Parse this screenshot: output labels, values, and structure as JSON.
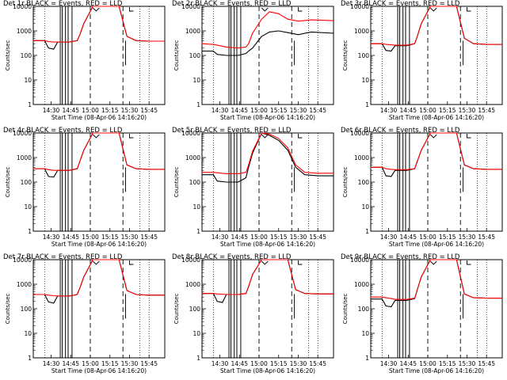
{
  "ylabel": "Counts/sec",
  "xlabel": "Start Time (08-Apr-06 14:16:20)",
  "x_tick_labels": [
    "14:30",
    "14:45",
    "15:00",
    "15:15",
    "15:30",
    "15:45"
  ],
  "y_tick_labels": [
    "1",
    "10",
    "100",
    "1000",
    "10000"
  ],
  "colors": {
    "events": "#000000",
    "lld": "#ff0000",
    "background": "#ffffff"
  },
  "chart_data": [
    {
      "type": "line",
      "title": "Det 1r BLACK = Events, RED = LLD",
      "xlabel": "Start Time (08-Apr-06 14:16:20)",
      "ylabel": "Counts/sec",
      "ylim": [
        1,
        10000
      ],
      "log_y": true,
      "series": [
        {
          "name": "Events",
          "x": [
            "14:16",
            "14:25",
            "14:28",
            "14:32",
            "14:35",
            "14:44",
            "14:50",
            "14:52",
            "14:55",
            "15:02",
            "15:15",
            "15:22",
            "15:28",
            "15:35",
            "15:45",
            "15:57"
          ],
          "y": [
            400,
            400,
            200,
            180,
            350,
            350,
            400,
            700,
            2000,
            10000,
            10000,
            10000,
            600,
            400,
            380,
            380
          ]
        },
        {
          "name": "LLD",
          "x": [
            "14:16",
            "14:25",
            "14:28",
            "14:32",
            "14:35",
            "14:44",
            "14:50",
            "14:52",
            "14:55",
            "15:02",
            "15:15",
            "15:22",
            "15:28",
            "15:35",
            "15:45",
            "15:57"
          ],
          "y": [
            400,
            400,
            370,
            350,
            350,
            350,
            400,
            700,
            2000,
            10000,
            10000,
            10000,
            600,
            400,
            380,
            380
          ]
        }
      ]
    },
    {
      "type": "line",
      "title": "Det 2r BLACK = Events, RED = LLD",
      "xlabel": "Start Time (08-Apr-06 14:16:20)",
      "ylabel": "Counts/sec",
      "ylim": [
        1,
        10000
      ],
      "log_y": true,
      "series": [
        {
          "name": "Events",
          "x": [
            "14:16",
            "14:25",
            "14:28",
            "14:35",
            "14:44",
            "14:50",
            "14:52",
            "14:55",
            "15:02",
            "15:08",
            "15:15",
            "15:22",
            "15:30",
            "15:40",
            "15:57"
          ],
          "y": [
            150,
            150,
            110,
            100,
            100,
            120,
            150,
            200,
            600,
            900,
            1000,
            850,
            700,
            900,
            800
          ]
        },
        {
          "name": "LLD",
          "x": [
            "14:16",
            "14:25",
            "14:35",
            "14:44",
            "14:50",
            "14:52",
            "14:55",
            "15:02",
            "15:08",
            "15:15",
            "15:22",
            "15:30",
            "15:40",
            "15:57"
          ],
          "y": [
            300,
            280,
            220,
            200,
            220,
            300,
            800,
            3000,
            6000,
            5000,
            3000,
            2500,
            2800,
            2600
          ]
        }
      ]
    },
    {
      "type": "line",
      "title": "Det 3r BLACK = Events, RED = LLD",
      "xlabel": "Start Time (08-Apr-06 14:16:20)",
      "ylabel": "Counts/sec",
      "ylim": [
        1,
        10000
      ],
      "log_y": true,
      "series": [
        {
          "name": "Events",
          "x": [
            "14:16",
            "14:25",
            "14:28",
            "14:32",
            "14:35",
            "14:44",
            "14:50",
            "14:52",
            "14:55",
            "15:02",
            "15:15",
            "15:22",
            "15:28",
            "15:35",
            "15:45",
            "15:57"
          ],
          "y": [
            300,
            300,
            160,
            150,
            250,
            250,
            300,
            600,
            2000,
            10000,
            10000,
            10000,
            500,
            300,
            280,
            280
          ]
        },
        {
          "name": "LLD",
          "x": [
            "14:16",
            "14:25",
            "14:28",
            "14:32",
            "14:35",
            "14:44",
            "14:50",
            "14:52",
            "14:55",
            "15:02",
            "15:15",
            "15:22",
            "15:28",
            "15:35",
            "15:45",
            "15:57"
          ],
          "y": [
            300,
            300,
            280,
            270,
            260,
            260,
            300,
            600,
            2000,
            10000,
            10000,
            10000,
            500,
            300,
            280,
            280
          ]
        }
      ]
    },
    {
      "type": "line",
      "title": "Det 4r BLACK = Events, RED = LLD",
      "xlabel": "Start Time (08-Apr-06 14:16:20)",
      "ylabel": "Counts/sec",
      "ylim": [
        1,
        10000
      ],
      "log_y": true,
      "series": [
        {
          "name": "Events",
          "x": [
            "14:16",
            "14:25",
            "14:28",
            "14:32",
            "14:35",
            "14:44",
            "14:50",
            "14:52",
            "14:55",
            "15:02",
            "15:15",
            "15:22",
            "15:28",
            "15:35",
            "15:45",
            "15:57"
          ],
          "y": [
            350,
            350,
            170,
            160,
            300,
            300,
            350,
            700,
            2000,
            10000,
            10000,
            10000,
            500,
            350,
            330,
            330
          ]
        },
        {
          "name": "LLD",
          "x": [
            "14:16",
            "14:25",
            "14:28",
            "14:32",
            "14:35",
            "14:44",
            "14:50",
            "14:52",
            "14:55",
            "15:02",
            "15:15",
            "15:22",
            "15:28",
            "15:35",
            "15:45",
            "15:57"
          ],
          "y": [
            350,
            350,
            320,
            300,
            300,
            300,
            350,
            700,
            2000,
            10000,
            10000,
            10000,
            500,
            350,
            330,
            330
          ]
        }
      ]
    },
    {
      "type": "line",
      "title": "Det 5r BLACK = Events, RED = LLD",
      "xlabel": "Start Time (08-Apr-06 14:16:20)",
      "ylabel": "Counts/sec",
      "ylim": [
        1,
        10000
      ],
      "log_y": true,
      "series": [
        {
          "name": "Events",
          "x": [
            "14:16",
            "14:25",
            "14:28",
            "14:35",
            "14:44",
            "14:50",
            "14:52",
            "14:55",
            "15:02",
            "15:08",
            "15:15",
            "15:22",
            "15:28",
            "15:35",
            "15:45",
            "15:57"
          ],
          "y": [
            200,
            200,
            110,
            100,
            100,
            150,
            400,
            1500,
            10000,
            8000,
            5000,
            2000,
            400,
            200,
            180,
            180
          ]
        },
        {
          "name": "LLD",
          "x": [
            "14:16",
            "14:25",
            "14:35",
            "14:44",
            "14:50",
            "14:52",
            "14:55",
            "15:02",
            "15:08",
            "15:15",
            "15:22",
            "15:28",
            "15:35",
            "15:45",
            "15:57"
          ],
          "y": [
            250,
            250,
            220,
            220,
            250,
            500,
            1800,
            10000,
            9000,
            6000,
            2500,
            500,
            250,
            230,
            230
          ]
        }
      ]
    },
    {
      "type": "line",
      "title": "Det 6r BLACK = Events, RED = LLD",
      "xlabel": "Start Time (08-Apr-06 14:16:20)",
      "ylabel": "Counts/sec",
      "ylim": [
        1,
        10000
      ],
      "log_y": true,
      "series": [
        {
          "name": "Events",
          "x": [
            "14:16",
            "14:25",
            "14:28",
            "14:32",
            "14:35",
            "14:44",
            "14:50",
            "14:52",
            "14:55",
            "15:02",
            "15:15",
            "15:22",
            "15:28",
            "15:35",
            "15:45",
            "15:57"
          ],
          "y": [
            400,
            400,
            180,
            170,
            300,
            300,
            350,
            700,
            2000,
            10000,
            10000,
            10000,
            500,
            350,
            330,
            330
          ]
        },
        {
          "name": "LLD",
          "x": [
            "14:16",
            "14:25",
            "14:28",
            "14:32",
            "14:35",
            "14:44",
            "14:50",
            "14:52",
            "14:55",
            "15:02",
            "15:15",
            "15:22",
            "15:28",
            "15:35",
            "15:45",
            "15:57"
          ],
          "y": [
            400,
            400,
            350,
            330,
            320,
            320,
            350,
            700,
            2000,
            10000,
            10000,
            10000,
            500,
            350,
            330,
            330
          ]
        }
      ]
    },
    {
      "type": "line",
      "title": "Det 7r BLACK = Events, RED = LLD",
      "xlabel": "Start Time (08-Apr-06 14:16:20)",
      "ylabel": "Counts/sec",
      "ylim": [
        1,
        10000
      ],
      "log_y": true,
      "series": [
        {
          "name": "Events",
          "x": [
            "14:16",
            "14:25",
            "14:28",
            "14:32",
            "14:35",
            "14:44",
            "14:50",
            "14:52",
            "14:55",
            "15:02",
            "15:15",
            "15:22",
            "15:28",
            "15:35",
            "15:45",
            "15:57"
          ],
          "y": [
            380,
            380,
            190,
            170,
            330,
            330,
            380,
            700,
            2000,
            10000,
            10000,
            10000,
            550,
            380,
            360,
            360
          ]
        },
        {
          "name": "LLD",
          "x": [
            "14:16",
            "14:25",
            "14:28",
            "14:32",
            "14:35",
            "14:44",
            "14:50",
            "14:52",
            "14:55",
            "15:02",
            "15:15",
            "15:22",
            "15:28",
            "15:35",
            "15:45",
            "15:57"
          ],
          "y": [
            380,
            380,
            360,
            340,
            330,
            330,
            380,
            700,
            2000,
            10000,
            10000,
            10000,
            550,
            380,
            360,
            360
          ]
        }
      ]
    },
    {
      "type": "line",
      "title": "Det 8r BLACK = Events, RED = LLD",
      "xlabel": "Start Time (08-Apr-06 14:16:20)",
      "ylabel": "Counts/sec",
      "ylim": [
        1,
        10000
      ],
      "log_y": true,
      "series": [
        {
          "name": "Events",
          "x": [
            "14:16",
            "14:25",
            "14:28",
            "14:32",
            "14:35",
            "14:44",
            "14:50",
            "14:52",
            "14:55",
            "15:02",
            "15:15",
            "15:22",
            "15:28",
            "15:35",
            "15:45",
            "15:57"
          ],
          "y": [
            420,
            420,
            200,
            180,
            380,
            380,
            420,
            800,
            2500,
            10000,
            10000,
            10000,
            600,
            420,
            400,
            400
          ]
        },
        {
          "name": "LLD",
          "x": [
            "14:16",
            "14:25",
            "14:28",
            "14:32",
            "14:35",
            "14:44",
            "14:50",
            "14:52",
            "14:55",
            "15:02",
            "15:15",
            "15:22",
            "15:28",
            "15:35",
            "15:45",
            "15:57"
          ],
          "y": [
            420,
            420,
            400,
            390,
            380,
            380,
            420,
            800,
            2500,
            10000,
            10000,
            10000,
            600,
            420,
            400,
            400
          ]
        }
      ]
    },
    {
      "type": "line",
      "title": "Det 9r BLACK = Events, RED = LLD",
      "xlabel": "Start Time (08-Apr-06 14:16:20)",
      "ylabel": "Counts/sec",
      "ylim": [
        1,
        10000
      ],
      "log_y": true,
      "series": [
        {
          "name": "Events",
          "x": [
            "14:16",
            "14:25",
            "14:28",
            "14:32",
            "14:35",
            "14:44",
            "14:50",
            "14:52",
            "14:55",
            "15:02",
            "15:15",
            "15:22",
            "15:28",
            "15:35",
            "15:45",
            "15:57"
          ],
          "y": [
            250,
            250,
            130,
            120,
            220,
            220,
            260,
            600,
            2000,
            10000,
            10000,
            10000,
            400,
            280,
            270,
            270
          ]
        },
        {
          "name": "LLD",
          "x": [
            "14:16",
            "14:25",
            "14:28",
            "14:32",
            "14:35",
            "14:44",
            "14:50",
            "14:52",
            "14:55",
            "15:02",
            "15:15",
            "15:22",
            "15:28",
            "15:35",
            "15:45",
            "15:57"
          ],
          "y": [
            300,
            300,
            280,
            260,
            240,
            240,
            270,
            600,
            2000,
            10000,
            10000,
            10000,
            400,
            280,
            270,
            270
          ]
        }
      ]
    }
  ]
}
